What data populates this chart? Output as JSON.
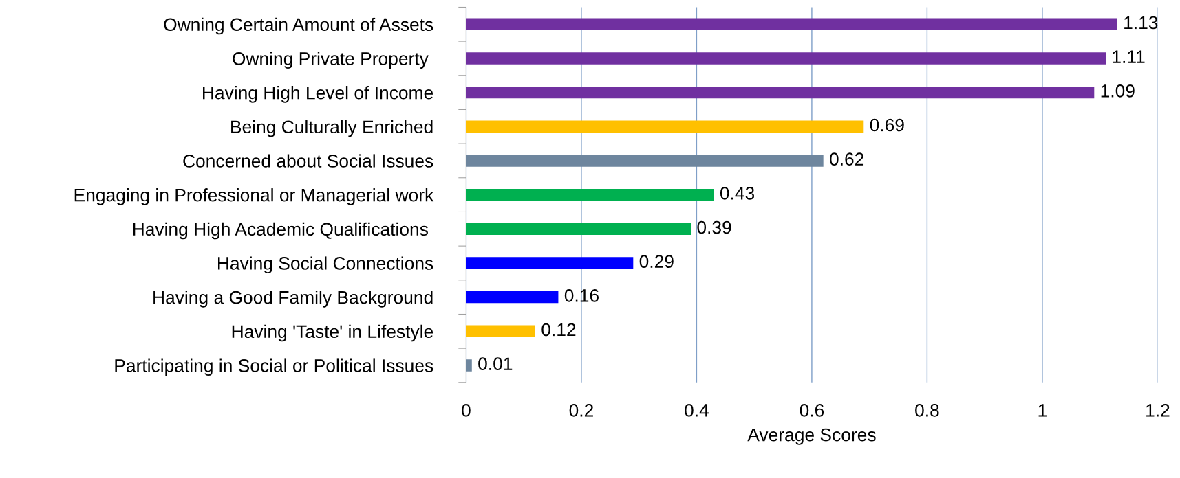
{
  "chart_data": {
    "type": "bar",
    "orientation": "horizontal",
    "xlabel": "Average Scores",
    "categories": [
      "Owning Certain Amount of Assets",
      "Owning Private Property ",
      "Having High Level of Income",
      "Being Culturally Enriched",
      "Concerned about Social Issues",
      "Engaging in Professional or Managerial work",
      "Having High Academic Qualifications ",
      "Having Social Connections",
      "Having a Good Family Background",
      "Having 'Taste' in Lifestyle",
      "Participating in Social or Political Issues"
    ],
    "values": [
      1.13,
      1.11,
      1.09,
      0.69,
      0.62,
      0.43,
      0.39,
      0.29,
      0.16,
      0.12,
      0.01
    ],
    "colors": [
      "#7030a0",
      "#7030a0",
      "#7030a0",
      "#ffc000",
      "#6e869e",
      "#00b050",
      "#00b050",
      "#0000ff",
      "#0000ff",
      "#ffc000",
      "#6e869e"
    ],
    "data_labels": true,
    "xlim": [
      0,
      1.2
    ],
    "xticks": [
      0,
      0.2,
      0.4,
      0.6,
      0.8,
      1,
      1.2
    ],
    "grid": "x"
  }
}
